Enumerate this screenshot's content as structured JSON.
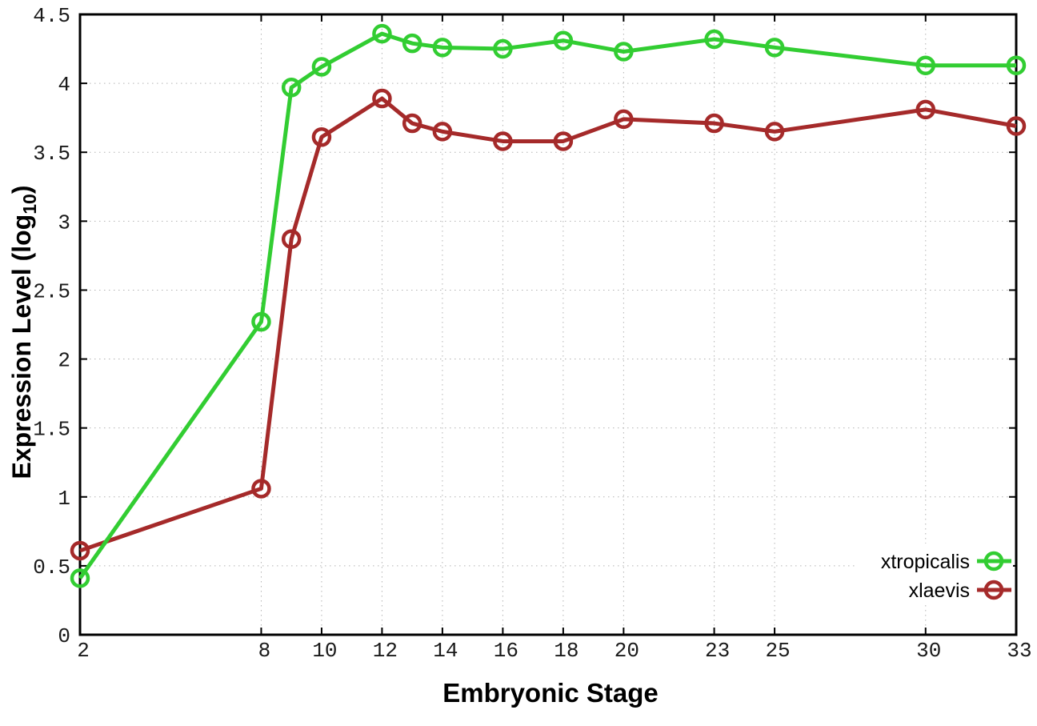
{
  "chart_data": {
    "type": "line",
    "title": "",
    "xlabel": "Embryonic Stage",
    "ylabel_main": "Expression Level (log",
    "ylabel_sub": "10",
    "ylabel_close": ")",
    "xlim": [
      2,
      33
    ],
    "ylim": [
      0,
      4.5
    ],
    "grid": true,
    "legend_position": "inside-right-lower",
    "x": [
      2,
      8,
      9,
      10,
      12,
      13,
      14,
      16,
      18,
      20,
      23,
      25,
      30,
      33
    ],
    "xticks": {
      "values": [
        2,
        8,
        10,
        12,
        14,
        16,
        18,
        20,
        23,
        25,
        30,
        33
      ],
      "labels": [
        "2",
        "8",
        "10",
        "12",
        "14",
        "16",
        "18",
        "20",
        "23",
        "25",
        "30",
        "33"
      ]
    },
    "yticks": {
      "values": [
        0,
        0.5,
        1,
        1.5,
        2,
        2.5,
        3,
        3.5,
        4,
        4.5
      ],
      "labels": [
        "0",
        "0.5",
        "1",
        "1.5",
        "2",
        "2.5",
        "3",
        "3.5",
        "4",
        "4.5"
      ]
    },
    "series": [
      {
        "name": "xtropicalis",
        "color": "#32cd32",
        "marker": "open-circle",
        "values": [
          0.41,
          2.27,
          3.97,
          4.12,
          4.36,
          4.29,
          4.26,
          4.25,
          4.31,
          4.23,
          4.32,
          4.26,
          4.13,
          4.13
        ]
      },
      {
        "name": "xlaevis",
        "color": "#a52a2a",
        "marker": "open-circle",
        "values": [
          0.61,
          1.06,
          2.87,
          3.61,
          3.89,
          3.71,
          3.65,
          3.58,
          3.58,
          3.74,
          3.71,
          3.65,
          3.81,
          3.69
        ]
      }
    ]
  }
}
